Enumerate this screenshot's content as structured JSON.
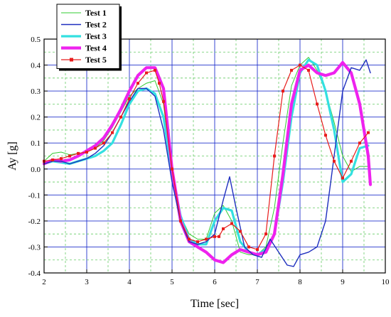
{
  "chart_data": {
    "type": "line",
    "xlabel": "Time [sec]",
    "ylabel": "Ay [g]",
    "xlim": [
      2,
      10
    ],
    "ylim": [
      -0.4,
      0.5
    ],
    "xticks": [
      2,
      3,
      4,
      5,
      6,
      7,
      8,
      9,
      10
    ],
    "yticks": [
      -0.4,
      -0.3,
      -0.2,
      -0.1,
      0.0,
      0.1,
      0.2,
      0.3,
      0.4,
      0.5
    ],
    "xtick_labels": [
      "2",
      "3",
      "4",
      "5",
      "6",
      "7",
      "8",
      "9",
      "10"
    ],
    "ytick_labels": [
      "-0.4",
      "-0.3",
      "-0.2",
      "-0.1",
      "0.0",
      "0.1",
      "0.2",
      "0.3",
      "0.4",
      "0.5"
    ],
    "grid": true,
    "legend_position": "top-left",
    "series": [
      {
        "name": "Test 1",
        "color": "#33cc33",
        "style": "thin",
        "x": [
          2.0,
          2.2,
          2.4,
          2.6,
          2.8,
          3.0,
          3.2,
          3.4,
          3.6,
          3.8,
          4.0,
          4.2,
          4.4,
          4.6,
          4.8,
          5.0,
          5.2,
          5.4,
          5.6,
          5.8,
          6.0,
          6.2,
          6.4,
          6.6,
          6.8,
          7.0,
          7.2,
          7.4,
          7.6,
          7.8,
          8.0,
          8.2,
          8.4,
          8.6,
          8.8,
          9.0,
          9.2,
          9.4,
          9.6
        ],
        "y": [
          0.03,
          0.06,
          0.065,
          0.055,
          0.06,
          0.065,
          0.08,
          0.11,
          0.16,
          0.22,
          0.28,
          0.31,
          0.33,
          0.34,
          0.25,
          -0.02,
          -0.18,
          -0.25,
          -0.27,
          -0.27,
          -0.17,
          -0.14,
          -0.2,
          -0.32,
          -0.33,
          -0.33,
          -0.3,
          -0.15,
          0.1,
          0.32,
          0.4,
          0.43,
          0.38,
          0.3,
          0.18,
          0.05,
          -0.01,
          0.01,
          0.01
        ]
      },
      {
        "name": "Test 2",
        "color": "#1f2fbf",
        "style": "medium",
        "x": [
          2.0,
          2.2,
          2.4,
          2.6,
          2.8,
          3.0,
          3.2,
          3.4,
          3.6,
          3.8,
          4.0,
          4.2,
          4.4,
          4.6,
          4.8,
          5.0,
          5.2,
          5.4,
          5.6,
          5.8,
          6.0,
          6.2,
          6.35,
          6.5,
          6.7,
          6.9,
          7.1,
          7.3,
          7.5,
          7.7,
          7.85,
          8.0,
          8.2,
          8.4,
          8.6,
          8.8,
          9.0,
          9.2,
          9.4,
          9.55,
          9.65
        ],
        "y": [
          0.02,
          0.03,
          0.03,
          0.02,
          0.03,
          0.04,
          0.06,
          0.09,
          0.14,
          0.2,
          0.26,
          0.31,
          0.31,
          0.28,
          0.15,
          -0.05,
          -0.2,
          -0.28,
          -0.29,
          -0.28,
          -0.25,
          -0.12,
          -0.03,
          -0.15,
          -0.3,
          -0.33,
          -0.34,
          -0.27,
          -0.32,
          -0.37,
          -0.375,
          -0.33,
          -0.32,
          -0.3,
          -0.2,
          0.05,
          0.3,
          0.39,
          0.38,
          0.42,
          0.37
        ]
      },
      {
        "name": "Test 3",
        "color": "#33e0e0",
        "style": "thick",
        "x": [
          2.0,
          2.2,
          2.4,
          2.6,
          2.8,
          3.0,
          3.2,
          3.4,
          3.6,
          3.8,
          4.0,
          4.2,
          4.4,
          4.6,
          4.8,
          5.0,
          5.2,
          5.4,
          5.6,
          5.8,
          6.0,
          6.2,
          6.4,
          6.6,
          6.8,
          7.0,
          7.2,
          7.4,
          7.6,
          7.8,
          8.0,
          8.2,
          8.4,
          8.6,
          8.8,
          9.0,
          9.2,
          9.4,
          9.6
        ],
        "y": [
          0.02,
          0.03,
          0.025,
          0.02,
          0.03,
          0.04,
          0.05,
          0.07,
          0.1,
          0.17,
          0.25,
          0.3,
          0.31,
          0.29,
          0.2,
          -0.02,
          -0.18,
          -0.27,
          -0.29,
          -0.29,
          -0.2,
          -0.15,
          -0.16,
          -0.28,
          -0.32,
          -0.33,
          -0.31,
          -0.25,
          -0.05,
          0.2,
          0.37,
          0.42,
          0.4,
          0.3,
          0.15,
          -0.05,
          -0.02,
          0.08,
          0.09
        ]
      },
      {
        "name": "Test 4",
        "color": "#ee22ee",
        "style": "bold",
        "x": [
          2.0,
          2.2,
          2.4,
          2.6,
          2.8,
          3.0,
          3.2,
          3.4,
          3.6,
          3.8,
          4.0,
          4.2,
          4.4,
          4.6,
          4.8,
          5.0,
          5.2,
          5.4,
          5.6,
          5.8,
          6.0,
          6.2,
          6.4,
          6.6,
          6.8,
          7.0,
          7.2,
          7.4,
          7.6,
          7.8,
          8.0,
          8.2,
          8.4,
          8.6,
          8.8,
          9.0,
          9.2,
          9.4,
          9.6,
          9.65
        ],
        "y": [
          0.02,
          0.035,
          0.03,
          0.035,
          0.05,
          0.07,
          0.09,
          0.12,
          0.17,
          0.23,
          0.3,
          0.36,
          0.39,
          0.39,
          0.31,
          0.0,
          -0.2,
          -0.28,
          -0.3,
          -0.32,
          -0.35,
          -0.36,
          -0.33,
          -0.31,
          -0.32,
          -0.33,
          -0.32,
          -0.25,
          -0.02,
          0.25,
          0.38,
          0.4,
          0.37,
          0.36,
          0.37,
          0.41,
          0.37,
          0.25,
          0.05,
          -0.06
        ]
      },
      {
        "name": "Test 5",
        "color": "#e81c1c",
        "style": "markers",
        "x": [
          2.0,
          2.2,
          2.4,
          2.6,
          2.8,
          3.0,
          3.2,
          3.4,
          3.6,
          3.8,
          4.0,
          4.2,
          4.4,
          4.6,
          4.7,
          4.8,
          5.0,
          5.2,
          5.4,
          5.6,
          5.8,
          6.0,
          6.1,
          6.2,
          6.4,
          6.6,
          6.8,
          7.0,
          7.2,
          7.4,
          7.6,
          7.8,
          8.0,
          8.2,
          8.4,
          8.6,
          8.8,
          9.0,
          9.2,
          9.4,
          9.6
        ],
        "y": [
          0.03,
          0.035,
          0.04,
          0.05,
          0.06,
          0.065,
          0.08,
          0.1,
          0.14,
          0.2,
          0.27,
          0.33,
          0.37,
          0.38,
          0.33,
          0.26,
          0.0,
          -0.2,
          -0.27,
          -0.28,
          -0.27,
          -0.26,
          -0.26,
          -0.23,
          -0.21,
          -0.24,
          -0.3,
          -0.31,
          -0.25,
          0.05,
          0.3,
          0.38,
          0.4,
          0.38,
          0.25,
          0.13,
          0.03,
          -0.035,
          0.03,
          0.1,
          0.14
        ]
      }
    ]
  }
}
